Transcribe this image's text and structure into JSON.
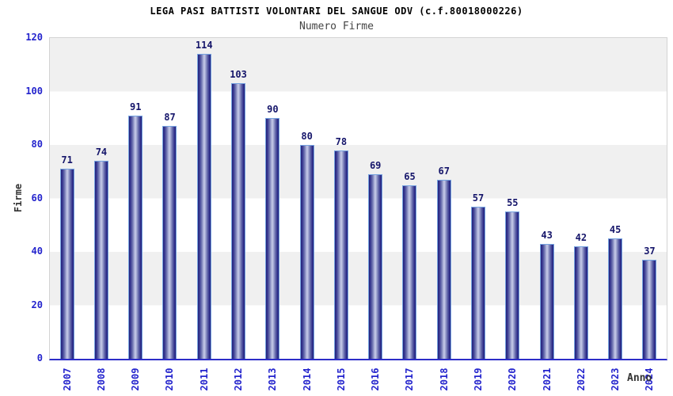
{
  "chart_data": {
    "type": "bar",
    "title": "LEGA PASI BATTISTI VOLONTARI DEL SANGUE ODV (c.f.80018000226)",
    "subtitle": "Numero Firme",
    "xlabel": "Anno",
    "ylabel": "Firme",
    "categories": [
      "2007",
      "2008",
      "2009",
      "2010",
      "2011",
      "2012",
      "2013",
      "2014",
      "2015",
      "2016",
      "2017",
      "2018",
      "2019",
      "2020",
      "2021",
      "2022",
      "2023",
      "2024"
    ],
    "values": [
      71,
      74,
      91,
      87,
      114,
      103,
      90,
      80,
      78,
      69,
      65,
      67,
      57,
      55,
      43,
      42,
      45,
      37
    ],
    "ylim": [
      0,
      120
    ],
    "yticks": [
      0,
      20,
      40,
      60,
      80,
      100,
      120
    ],
    "grid": "alternating-horizontal-bands",
    "legend_position": "none",
    "x_tick_rotation_deg": -90,
    "colors": {
      "bar_dark": "#23237b",
      "bar_light": "#c9cdea",
      "bar_border": "#76a3e0",
      "tick_label": "#2424cd",
      "value_label": "#15156a",
      "band_gray": "#f0f0f0",
      "axis_line_blue": "#2d2dc8",
      "plot_border": "#d3d3d3",
      "title_color": "#000000",
      "subtitle_color": "#444444",
      "axis_title_color": "#333333"
    }
  }
}
